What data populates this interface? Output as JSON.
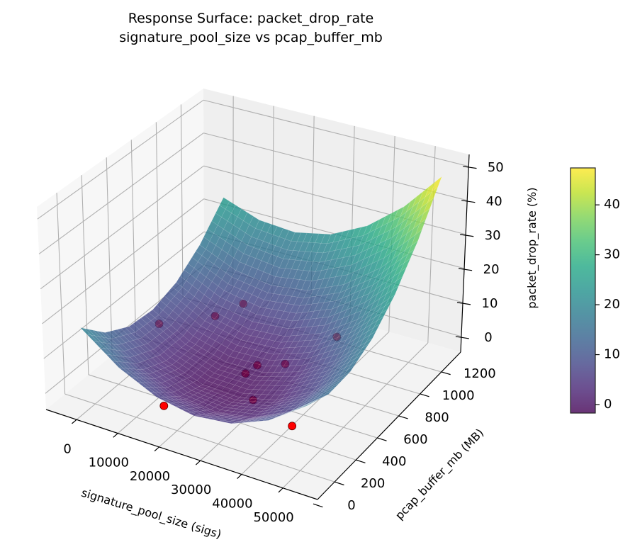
{
  "chart_data": {
    "type": "surface",
    "title": [
      "Response Surface: packet_drop_rate",
      "signature_pool_size vs pcap_buffer_mb"
    ],
    "xlabel": "signature_pool_size (sigs)",
    "ylabel": "pcap_buffer_mb (MB)",
    "zlabel": "packet_drop_rate (%)",
    "xlim": [
      -7400,
      58400
    ],
    "ylim": [
      40,
      1380
    ],
    "zlim": [
      -4.6,
      53.5
    ],
    "xticks": [
      0,
      10000,
      20000,
      30000,
      40000,
      50000
    ],
    "xtick_labels": [
      "0",
      "10000",
      "20000",
      "30000",
      "40000",
      "50000"
    ],
    "yticks": [
      0,
      200,
      400,
      600,
      800,
      1000,
      1200
    ],
    "ytick_labels": [
      "0",
      "200",
      "400",
      "600",
      "800",
      "1000",
      "1200"
    ],
    "zticks": [
      0,
      10,
      20,
      30,
      40,
      50
    ],
    "ztick_labels": [
      "0",
      "10",
      "20",
      "30",
      "40",
      "50"
    ],
    "grid": true,
    "colormap": "viridis",
    "surface_alpha": 0.8,
    "surface": {
      "x": [
        0,
        9000,
        18000,
        27000,
        36000,
        45000,
        54000
      ],
      "y": [
        100,
        300,
        500,
        700,
        900,
        1100,
        1300
      ],
      "z": [
        [
          20.05,
          12.0,
          7.02,
          5.15,
          6.36,
          10.66,
          18.05
        ],
        [
          13.16,
          5.8,
          1.52,
          0.34,
          2.24,
          7.24,
          15.32
        ],
        [
          9.36,
          2.7,
          -0.89,
          -1.37,
          1.23,
          6.92,
          15.7
        ],
        [
          8.65,
          2.68,
          -0.21,
          0.0,
          3.29,
          9.68,
          19.15
        ],
        [
          11.03,
          5.75,
          3.56,
          4.46,
          8.44,
          15.53,
          25.69
        ],
        [
          16.49,
          11.91,
          10.41,
          12.01,
          16.69,
          24.47,
          35.33
        ],
        [
          25.05,
          21.16,
          20.36,
          22.65,
          28.02,
          36.5,
          48.05
        ]
      ]
    },
    "scatter": {
      "color": "#ff0000",
      "points": [
        {
          "x": 3000,
          "y": 650,
          "z": 7
        },
        {
          "x": 10800,
          "y": 860,
          "z": 6
        },
        {
          "x": 14850,
          "y": 963,
          "z": 8
        },
        {
          "x": 44200,
          "y": 742,
          "z": 15
        },
        {
          "x": 33100,
          "y": 686,
          "z": 5
        },
        {
          "x": 27500,
          "y": 640,
          "z": 4
        },
        {
          "x": 26300,
          "y": 578,
          "z": 3
        },
        {
          "x": 31600,
          "y": 454,
          "z": 1
        },
        {
          "x": 18100,
          "y": 156,
          "z": 3
        },
        {
          "x": 42500,
          "y": 406,
          "z": -1
        }
      ]
    },
    "colorbar": {
      "range": [
        -1.7,
        47.4
      ],
      "ticks": [
        0,
        10,
        20,
        30,
        40
      ],
      "tick_labels": [
        "0",
        "10",
        "20",
        "30",
        "40"
      ]
    },
    "colors": {
      "pane_left": "#f7f7f7",
      "pane_back": "#efefef",
      "pane_floor": "#f3f3f3",
      "grid": "#b0b0b0",
      "axis": "#000000"
    }
  }
}
